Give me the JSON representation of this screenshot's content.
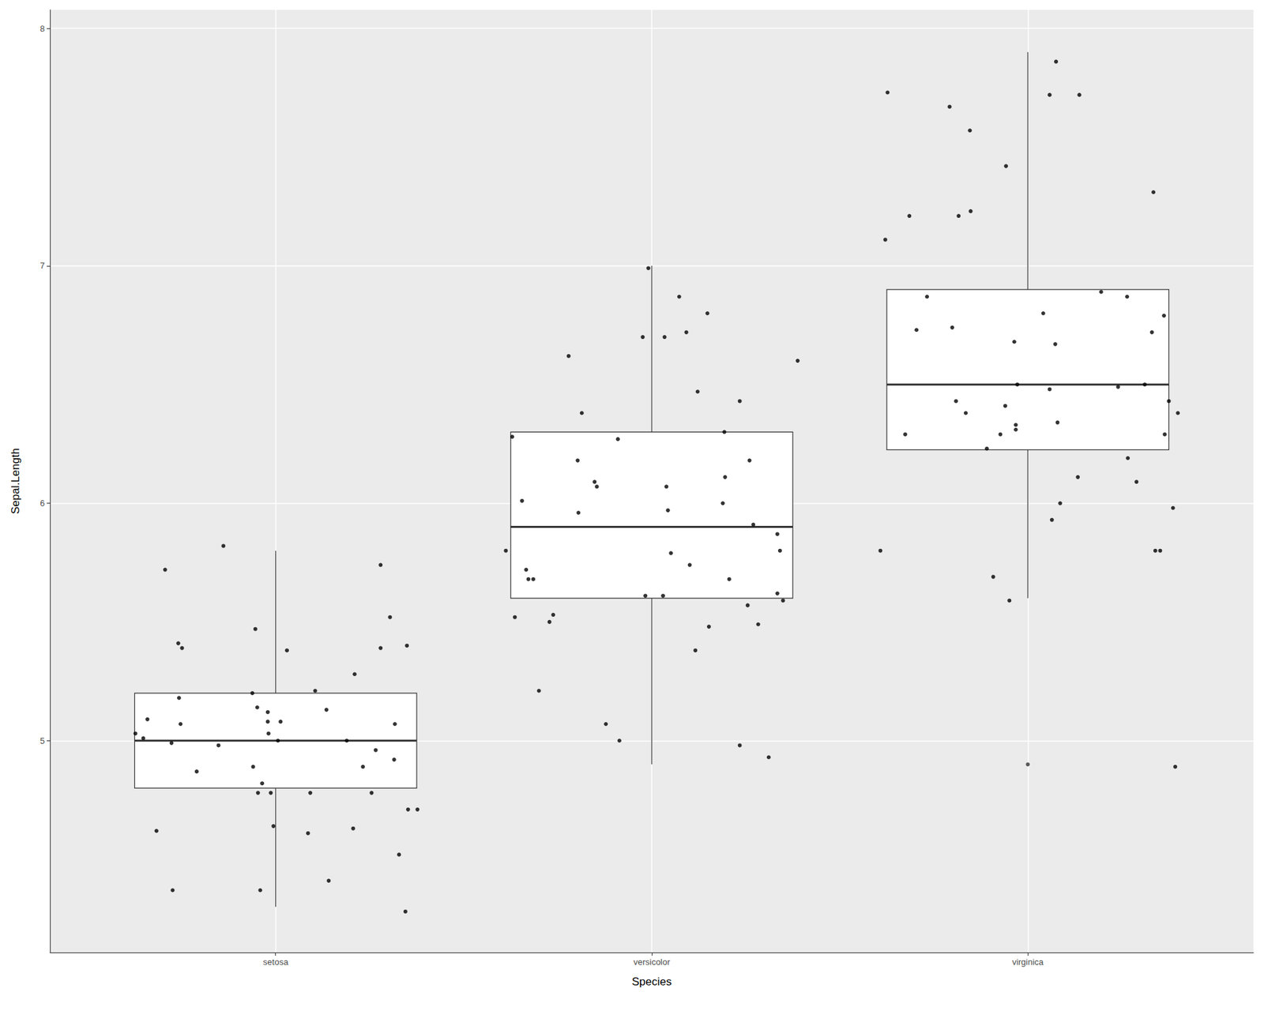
{
  "chart_data": {
    "type": "boxplot",
    "x_label": "Species",
    "y_label": "Sepal.Length",
    "xlim": [
      0.4,
      3.6
    ],
    "xticks": [
      {
        "value": 1,
        "label": "setosa"
      },
      {
        "value": 2,
        "label": "versicolor"
      },
      {
        "value": 3,
        "label": "virginica"
      }
    ],
    "ylim": [
      4.108,
      8.078
    ],
    "yticks": [
      5,
      6,
      7,
      8
    ],
    "grid": true,
    "boxes": [
      {
        "x": 1,
        "min": 4.3,
        "q1": 4.8,
        "median": 5.0,
        "q3": 5.2,
        "max": 5.8,
        "outliers": []
      },
      {
        "x": 2,
        "min": 4.9,
        "q1": 5.6,
        "median": 5.9,
        "q3": 6.3,
        "max": 7.0,
        "outliers": []
      },
      {
        "x": 3,
        "min": 5.6,
        "q1": 6.225,
        "median": 6.5,
        "q3": 6.9,
        "max": 7.9,
        "outliers": [
          4.9
        ]
      }
    ],
    "points": {
      "color": "#000000",
      "x": [
        0.627,
        0.648,
        0.659,
        0.706,
        0.683,
        0.726,
        0.723,
        0.741,
        0.743,
        0.747,
        0.751,
        0.79,
        0.848,
        0.861,
        0.938,
        0.946,
        0.951,
        0.94,
        0.953,
        0.959,
        0.964,
        0.979,
        0.979,
        0.981,
        0.987,
        0.994,
        1.006,
        1.013,
        1.03,
        1.086,
        1.092,
        1.105,
        1.135,
        1.141,
        1.189,
        1.206,
        1.21,
        1.232,
        1.255,
        1.266,
        1.279,
        1.279,
        1.304,
        1.315,
        1.317,
        1.328,
        1.345,
        1.349,
        1.352,
        1.377,
        1.612,
        1.629,
        1.636,
        1.655,
        1.666,
        1.672,
        1.685,
        1.7,
        1.728,
        1.738,
        1.779,
        1.803,
        1.805,
        1.814,
        1.848,
        1.854,
        1.878,
        1.91,
        1.914,
        1.976,
        1.983,
        1.991,
        2.03,
        2.034,
        2.039,
        2.043,
        2.051,
        2.073,
        2.092,
        2.101,
        2.116,
        2.122,
        2.148,
        2.152,
        2.189,
        2.193,
        2.195,
        2.206,
        2.234,
        2.234,
        2.255,
        2.26,
        2.27,
        2.283,
        2.311,
        2.334,
        2.334,
        2.341,
        2.349,
        2.388,
        2.608,
        2.621,
        2.627,
        2.674,
        2.685,
        2.704,
        2.732,
        2.792,
        2.799,
        2.809,
        2.816,
        2.835,
        2.846,
        2.848,
        2.891,
        2.908,
        2.927,
        2.94,
        2.942,
        2.951,
        2.964,
        2.968,
        2.968,
        2.972,
        3.041,
        3.058,
        3.058,
        3.064,
        3.073,
        3.075,
        3.079,
        3.086,
        3.133,
        3.137,
        3.195,
        3.24,
        3.264,
        3.266,
        3.289,
        3.311,
        3.33,
        3.334,
        3.339,
        3.352,
        3.362,
        3.364,
        3.375,
        3.386,
        3.392,
        3.399
      ],
      "y": [
        5.03,
        5.01,
        5.09,
        5.72,
        4.62,
        4.37,
        4.99,
        5.41,
        5.18,
        5.07,
        5.39,
        4.87,
        4.98,
        5.82,
        5.2,
        5.47,
        5.14,
        4.89,
        4.78,
        4.37,
        4.82,
        5.12,
        5.08,
        5.03,
        4.78,
        4.64,
        5.0,
        5.08,
        5.38,
        4.61,
        4.78,
        5.21,
        5.13,
        4.41,
        5.0,
        4.63,
        5.28,
        4.89,
        4.78,
        4.96,
        5.74,
        5.39,
        5.52,
        4.92,
        5.07,
        4.52,
        4.28,
        5.4,
        4.71,
        4.71,
        5.8,
        6.28,
        5.52,
        6.01,
        5.72,
        5.68,
        5.68,
        5.21,
        5.5,
        5.53,
        6.62,
        6.18,
        5.96,
        6.38,
        6.09,
        6.07,
        5.07,
        6.27,
        5.0,
        6.7,
        5.61,
        6.99,
        5.61,
        6.7,
        6.07,
        5.97,
        5.79,
        6.87,
        6.72,
        5.74,
        5.38,
        6.47,
        6.8,
        5.48,
        6.0,
        6.3,
        6.11,
        5.68,
        6.43,
        4.98,
        5.57,
        6.18,
        5.91,
        5.49,
        4.93,
        5.87,
        5.62,
        5.8,
        5.59,
        6.6,
        5.8,
        7.11,
        7.73,
        6.29,
        7.21,
        6.73,
        6.87,
        7.67,
        6.74,
        6.43,
        7.21,
        6.38,
        7.57,
        7.23,
        6.23,
        5.69,
        6.29,
        6.41,
        7.42,
        5.59,
        6.68,
        6.33,
        6.31,
        6.5,
        6.8,
        7.72,
        6.48,
        5.93,
        6.67,
        7.86,
        6.34,
        6.0,
        6.11,
        7.72,
        6.89,
        6.49,
        6.87,
        6.19,
        6.09,
        6.5,
        6.72,
        7.31,
        5.8,
        5.8,
        6.79,
        6.29,
        6.43,
        5.98,
        4.89,
        6.38
      ]
    }
  }
}
